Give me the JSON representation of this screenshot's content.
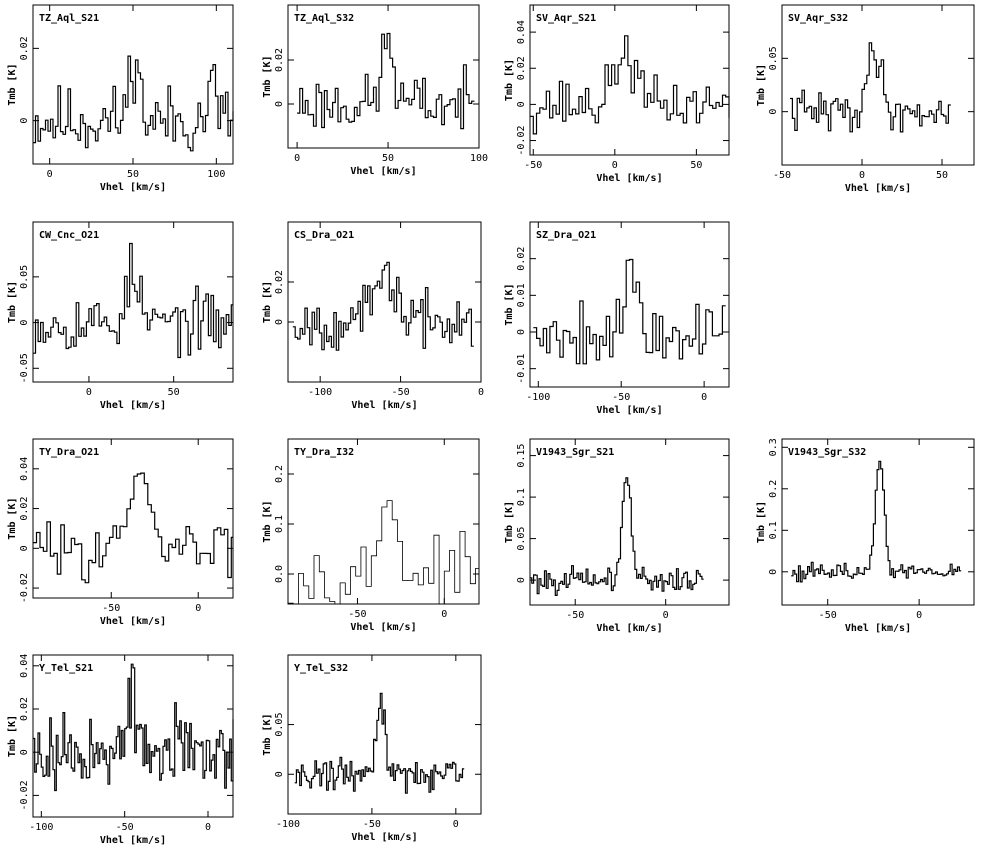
{
  "chart_data": [
    {
      "type": "line",
      "title": "TZ_Aql_S21",
      "xlabel": "Vhel [km/s]",
      "ylabel": "Tmb [K]",
      "xlim": [
        -10,
        110
      ],
      "ylim": [
        -0.012,
        0.032
      ],
      "xticks": [
        0,
        50,
        100
      ],
      "yticks": [
        0,
        0.02
      ],
      "xtick_labels": [
        "0",
        "50",
        "100"
      ],
      "ytick_labels": [
        "0",
        "0.02"
      ],
      "noise": 0.006,
      "peaks": [
        {
          "v": 50,
          "a": 0.018,
          "w": 3
        },
        {
          "v": 97,
          "a": 0.01,
          "w": 2.5
        }
      ],
      "step": 1.5,
      "seed": 11
    },
    {
      "type": "line",
      "title": "TZ_Aql_S32",
      "xlabel": "Vhel [km/s]",
      "ylabel": "Tmb [K]",
      "xlim": [
        -5,
        100
      ],
      "ylim": [
        -0.02,
        0.045
      ],
      "xticks": [
        0,
        50,
        100
      ],
      "yticks": [
        0,
        0.02
      ],
      "xtick_labels": [
        "0",
        "50",
        "100"
      ],
      "ytick_labels": [
        "0",
        "0.02"
      ],
      "noise": 0.008,
      "peaks": [
        {
          "v": 49,
          "a": 0.03,
          "w": 3
        }
      ],
      "step": 1.5,
      "xrange": [
        0,
        97
      ],
      "seed": 23
    },
    {
      "type": "line",
      "title": "SV_Aqr_S21",
      "xlabel": "Vhel [km/s]",
      "ylabel": "Tmb [K]",
      "xlim": [
        -52,
        70
      ],
      "ylim": [
        -0.028,
        0.055
      ],
      "xticks": [
        -50,
        0,
        50
      ],
      "yticks": [
        -0.02,
        0,
        0.02,
        0.04
      ],
      "xtick_labels": [
        "-50",
        "0",
        "50"
      ],
      "ytick_labels": [
        "-0.02",
        "0",
        "0.02",
        "0.04"
      ],
      "noise": 0.009,
      "peaks": [
        {
          "v": 5,
          "a": 0.03,
          "w": 6
        }
      ],
      "step": 2,
      "seed": 37
    },
    {
      "type": "line",
      "title": "SV_Aqr_S32",
      "xlabel": "Vhel [km/s]",
      "ylabel": "Tmb [K]",
      "xlim": [
        -50,
        70
      ],
      "ylim": [
        -0.05,
        0.1
      ],
      "xticks": [
        -50,
        0,
        50
      ],
      "yticks": [
        0,
        0.05
      ],
      "xtick_labels": [
        "-50",
        "0",
        "50"
      ],
      "ytick_labels": [
        "0",
        "0.05"
      ],
      "noise": 0.012,
      "peaks": [
        {
          "v": 7,
          "a": 0.06,
          "w": 4
        }
      ],
      "step": 1.5,
      "xrange": [
        -45,
        55
      ],
      "seed": 41
    },
    {
      "type": "line",
      "title": "CW_Cnc_O21",
      "xlabel": "Vhel [km/s]",
      "ylabel": "Tmb [K]",
      "xlim": [
        -33,
        85
      ],
      "ylim": [
        -0.065,
        0.11
      ],
      "xticks": [
        0,
        50
      ],
      "yticks": [
        -0.05,
        0,
        0.05
      ],
      "xtick_labels": [
        "0",
        "50"
      ],
      "ytick_labels": [
        "-0.05",
        "0",
        "0.05"
      ],
      "noise": 0.02,
      "peaks": [
        {
          "v": 25,
          "a": 0.055,
          "w": 3.5
        }
      ],
      "step": 1.5,
      "seed": 53
    },
    {
      "type": "line",
      "title": "CS_Dra_O21",
      "xlabel": "Vhel [km/s]",
      "ylabel": "Tmb [K]",
      "xlim": [
        -120,
        0
      ],
      "ylim": [
        -0.03,
        0.05
      ],
      "xticks": [
        -100,
        -50,
        0
      ],
      "yticks": [
        0,
        0.02
      ],
      "xtick_labels": [
        "-100",
        "-50",
        "0"
      ],
      "ytick_labels": [
        "0",
        "0.02"
      ],
      "noise": 0.008,
      "peaks": [
        {
          "v": -60,
          "a": 0.022,
          "w": 7
        }
      ],
      "step": 1.5,
      "xrange": [
        -117,
        -5
      ],
      "seed": 67
    },
    {
      "type": "line",
      "title": "SZ_Dra_O21",
      "xlabel": "Vhel [km/s]",
      "ylabel": "Tmb [K]",
      "xlim": [
        -105,
        15
      ],
      "ylim": [
        -0.015,
        0.03
      ],
      "xticks": [
        -100,
        -50,
        0
      ],
      "yticks": [
        -0.01,
        0,
        0.01,
        0.02
      ],
      "xtick_labels": [
        "-100",
        "-50",
        "0"
      ],
      "ytick_labels": [
        "-0.01",
        "0",
        "0.01",
        "0.02"
      ],
      "noise": 0.006,
      "peaks": [
        {
          "v": -45,
          "a": 0.016,
          "w": 4
        }
      ],
      "step": 2,
      "xrange": [
        -103,
        12
      ],
      "seed": 79
    },
    {
      "type": "line",
      "title": "TY_Dra_O21",
      "xlabel": "Vhel [km/s]",
      "ylabel": "Tmb [K]",
      "xlim": [
        -95,
        20
      ],
      "ylim": [
        -0.025,
        0.055
      ],
      "xticks": [
        -50,
        0
      ],
      "yticks": [
        -0.02,
        0,
        0.02,
        0.04
      ],
      "xtick_labels": [
        "-50",
        "0"
      ],
      "ytick_labels": [
        "-0.02",
        "0",
        "0.02",
        "0.04"
      ],
      "noise": 0.008,
      "peaks": [
        {
          "v": -35,
          "a": 0.032,
          "w": 6
        }
      ],
      "step": 2,
      "seed": 83
    },
    {
      "type": "line",
      "title": "TY_Dra_I32",
      "xlabel": "Vhel [km/s]",
      "ylabel": "Tmb [K]",
      "xlim": [
        -90,
        20
      ],
      "ylim": [
        -0.06,
        0.27
      ],
      "xticks": [
        -50,
        0
      ],
      "yticks": [
        0,
        0.1,
        0.2
      ],
      "xtick_labels": [
        "-50",
        "0"
      ],
      "ytick_labels": [
        "0.0",
        "0.1",
        "0.2"
      ],
      "noise": 0.04,
      "peaks": [
        {
          "v": -33,
          "a": 0.18,
          "w": 4
        }
      ],
      "step": 3,
      "seed": 97,
      "thin": true
    },
    {
      "type": "line",
      "title": "V1943_Sgr_S21",
      "xlabel": "Vhel [km/s]",
      "ylabel": "Tmb [K]",
      "xlim": [
        -75,
        35
      ],
      "ylim": [
        -0.03,
        0.17
      ],
      "xticks": [
        -50,
        0
      ],
      "yticks": [
        0,
        0.05,
        0.1,
        0.15
      ],
      "xtick_labels": [
        "-50",
        "0"
      ],
      "ytick_labels": [
        "0",
        "0.05",
        "0.1",
        "0.15"
      ],
      "noise": 0.009,
      "peaks": [
        {
          "v": -22,
          "a": 0.125,
          "w": 2.5
        }
      ],
      "step": 1,
      "xrange": [
        -75,
        20
      ],
      "seed": 101
    },
    {
      "type": "line",
      "title": "V1943_Sgr_S32",
      "xlabel": "Vhel [km/s]",
      "ylabel": "Tmb [K]",
      "xlim": [
        -75,
        30
      ],
      "ylim": [
        -0.08,
        0.32
      ],
      "xticks": [
        -50,
        0
      ],
      "yticks": [
        0,
        0.1,
        0.2,
        0.3
      ],
      "xtick_labels": [
        "-50",
        "0"
      ],
      "ytick_labels": [
        "0",
        "0.1",
        "0.2",
        "0.3"
      ],
      "noise": 0.012,
      "peaks": [
        {
          "v": -22,
          "a": 0.26,
          "w": 2.5
        }
      ],
      "step": 1,
      "xrange": [
        -70,
        22
      ],
      "seed": 113
    },
    {
      "type": "line",
      "title": "Y_Tel_S21",
      "xlabel": "Vhel [km/s]",
      "ylabel": "Tmb [K]",
      "xlim": [
        -105,
        15
      ],
      "ylim": [
        -0.03,
        0.045
      ],
      "xticks": [
        -100,
        -50,
        0
      ],
      "yticks": [
        -0.02,
        0,
        0.02,
        0.04
      ],
      "xtick_labels": [
        "-100",
        "-50",
        "0"
      ],
      "ytick_labels": [
        "-0.02",
        "0",
        "0.02",
        "0.04"
      ],
      "noise": 0.011,
      "peaks": [
        {
          "v": -46,
          "a": 0.022,
          "w": 3
        }
      ],
      "step": 1,
      "seed": 127
    },
    {
      "type": "line",
      "title": "Y_Tel_S32",
      "xlabel": "Vhel [km/s]",
      "ylabel": "Tmb [K]",
      "xlim": [
        -100,
        15
      ],
      "ylim": [
        -0.04,
        0.12
      ],
      "xticks": [
        -100,
        -50,
        0
      ],
      "yticks": [
        0,
        0.05
      ],
      "xtick_labels": [
        "-100",
        "-50",
        "0"
      ],
      "ytick_labels": [
        "0",
        "0.05"
      ],
      "noise": 0.01,
      "peaks": [
        {
          "v": -45,
          "a": 0.075,
          "w": 2.5
        }
      ],
      "step": 1,
      "xrange": [
        -96,
        4
      ],
      "seed": 131
    }
  ]
}
